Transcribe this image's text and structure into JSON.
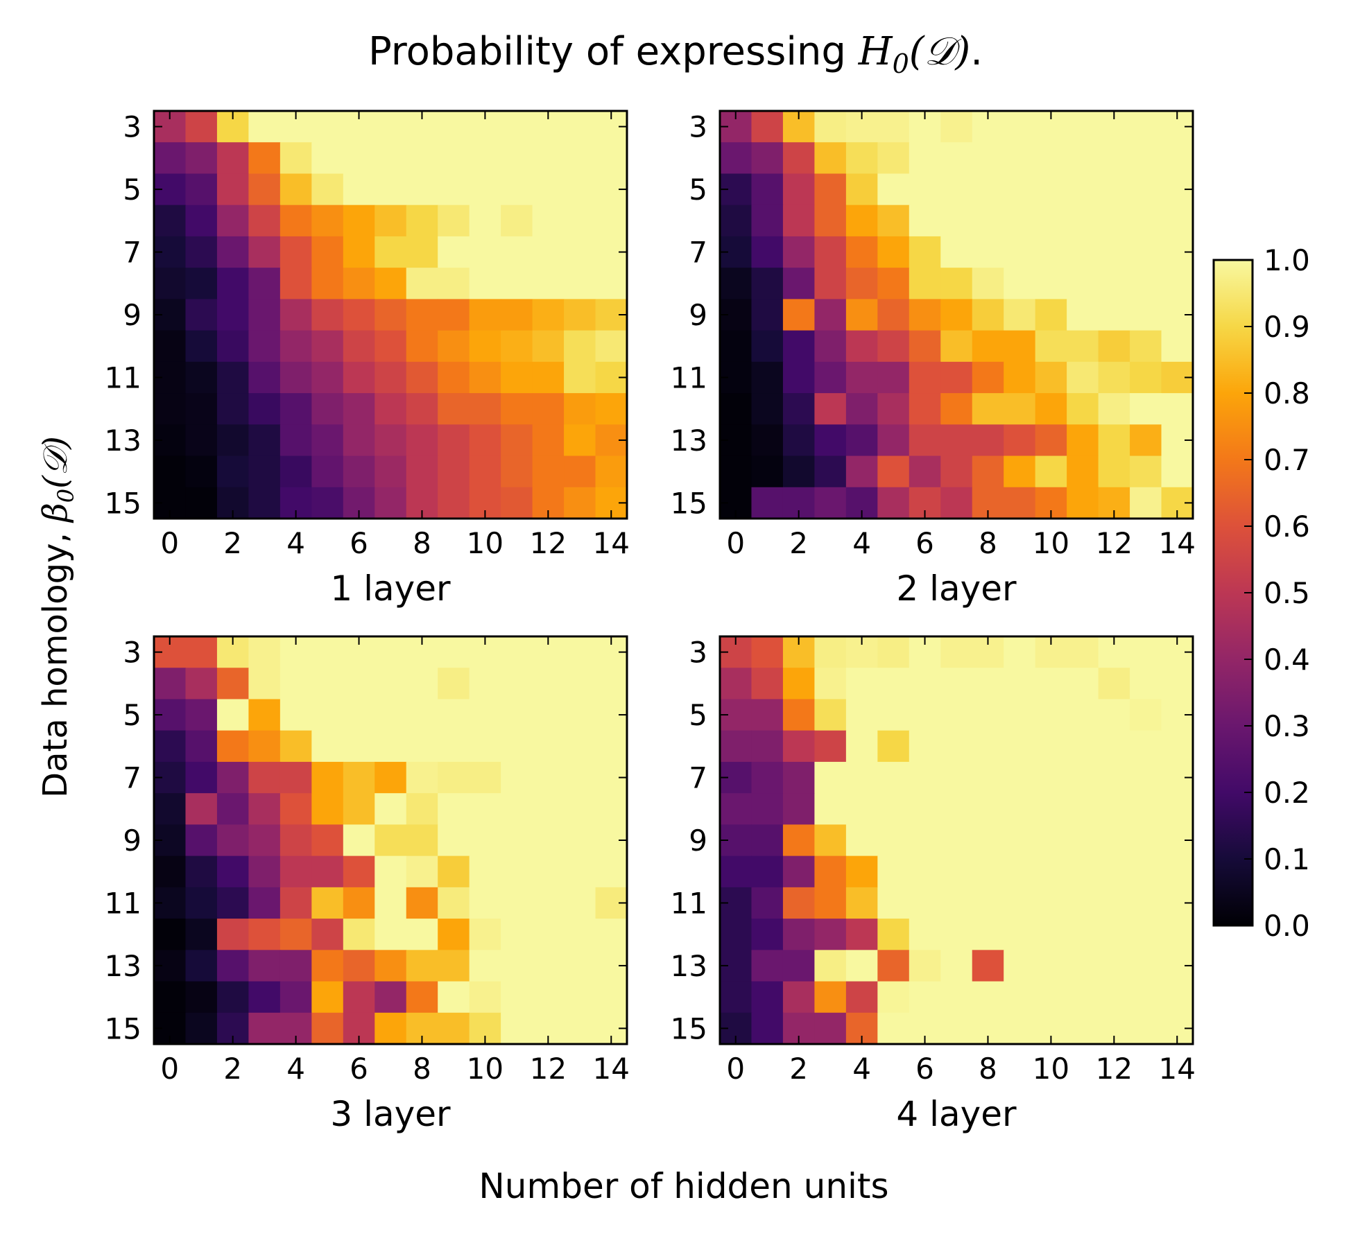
{
  "figure": {
    "title_prefix": "Probability of expressing ",
    "title_math": "H",
    "title_math_sub": "0",
    "title_math_arg": "(𝒟)",
    "title_suffix": ".",
    "xlabel": "Number of hidden units",
    "ylabel_prefix": "Data homology, ",
    "ylabel_math": "β",
    "ylabel_math_sub": "0",
    "ylabel_math_arg": "(𝒟)"
  },
  "colormap": {
    "name": "inferno",
    "stops": [
      "#000004",
      "#160b39",
      "#420a68",
      "#6a176e",
      "#932667",
      "#bc3754",
      "#dd513a",
      "#f37819",
      "#fca50a",
      "#f6d746",
      "#f8f8a0"
    ]
  },
  "colorbar": {
    "vmin": 0.0,
    "vmax": 1.0,
    "ticks": [
      0.0,
      0.1,
      0.2,
      0.3,
      0.4,
      0.5,
      0.6,
      0.7,
      0.8,
      0.9,
      1.0
    ],
    "tick_labels": [
      "0.0",
      "0.1",
      "0.2",
      "0.3",
      "0.4",
      "0.5",
      "0.6",
      "0.7",
      "0.8",
      "0.9",
      "1.0"
    ]
  },
  "chart_data": [
    {
      "type": "heatmap",
      "title": "",
      "xlabel": "1 layer",
      "x": [
        0,
        1,
        2,
        3,
        4,
        5,
        6,
        7,
        8,
        9,
        10,
        11,
        12,
        13,
        14
      ],
      "y": [
        3,
        4,
        5,
        6,
        7,
        8,
        9,
        10,
        11,
        12,
        13,
        14,
        15
      ],
      "xticks": [
        "0",
        "2",
        "4",
        "6",
        "8",
        "10",
        "12",
        "14"
      ],
      "yticks": [
        "3",
        "5",
        "7",
        "9",
        "11",
        "13",
        "15"
      ],
      "z": [
        [
          0.45,
          0.55,
          0.9,
          1.0,
          1.0,
          1.0,
          1.0,
          1.0,
          1.0,
          1.0,
          1.0,
          1.0,
          1.0,
          1.0,
          1.0
        ],
        [
          0.3,
          0.35,
          0.5,
          0.7,
          0.95,
          1.0,
          1.0,
          1.0,
          1.0,
          1.0,
          1.0,
          1.0,
          1.0,
          1.0,
          1.0
        ],
        [
          0.2,
          0.25,
          0.5,
          0.65,
          0.85,
          0.95,
          1.0,
          1.0,
          1.0,
          1.0,
          1.0,
          1.0,
          1.0,
          1.0,
          1.0
        ],
        [
          0.12,
          0.2,
          0.4,
          0.55,
          0.7,
          0.75,
          0.8,
          0.85,
          0.9,
          0.95,
          1.0,
          0.97,
          1.0,
          1.0,
          1.0
        ],
        [
          0.1,
          0.15,
          0.3,
          0.45,
          0.6,
          0.7,
          0.8,
          0.9,
          0.9,
          1.0,
          1.0,
          1.0,
          1.0,
          1.0,
          1.0
        ],
        [
          0.08,
          0.1,
          0.2,
          0.3,
          0.6,
          0.7,
          0.75,
          0.8,
          0.97,
          0.97,
          1.0,
          1.0,
          1.0,
          1.0,
          1.0
        ],
        [
          0.05,
          0.15,
          0.2,
          0.3,
          0.45,
          0.55,
          0.6,
          0.65,
          0.7,
          0.7,
          0.78,
          0.78,
          0.82,
          0.85,
          0.88
        ],
        [
          0.03,
          0.1,
          0.18,
          0.3,
          0.4,
          0.45,
          0.55,
          0.6,
          0.7,
          0.75,
          0.8,
          0.82,
          0.85,
          0.92,
          0.95
        ],
        [
          0.03,
          0.05,
          0.12,
          0.25,
          0.35,
          0.4,
          0.5,
          0.55,
          0.62,
          0.7,
          0.75,
          0.8,
          0.8,
          0.92,
          0.9
        ],
        [
          0.03,
          0.04,
          0.12,
          0.18,
          0.25,
          0.35,
          0.4,
          0.5,
          0.55,
          0.65,
          0.65,
          0.7,
          0.7,
          0.78,
          0.8
        ],
        [
          0.02,
          0.04,
          0.08,
          0.12,
          0.25,
          0.3,
          0.4,
          0.45,
          0.5,
          0.55,
          0.6,
          0.65,
          0.7,
          0.8,
          0.75
        ],
        [
          0.01,
          0.02,
          0.1,
          0.12,
          0.18,
          0.28,
          0.35,
          0.42,
          0.5,
          0.55,
          0.6,
          0.65,
          0.7,
          0.7,
          0.78
        ],
        [
          0.01,
          0.01,
          0.08,
          0.12,
          0.2,
          0.22,
          0.32,
          0.4,
          0.5,
          0.55,
          0.6,
          0.62,
          0.7,
          0.75,
          0.8
        ]
      ]
    },
    {
      "type": "heatmap",
      "title": "",
      "xlabel": "2 layer",
      "x": [
        0,
        1,
        2,
        3,
        4,
        5,
        6,
        7,
        8,
        9,
        10,
        11,
        12,
        13,
        14
      ],
      "y": [
        3,
        4,
        5,
        6,
        7,
        8,
        9,
        10,
        11,
        12,
        13,
        14,
        15
      ],
      "xticks": [
        "0",
        "2",
        "4",
        "6",
        "8",
        "10",
        "12",
        "14"
      ],
      "yticks": [
        "3",
        "5",
        "7",
        "9",
        "11",
        "13",
        "15"
      ],
      "z": [
        [
          0.4,
          0.55,
          0.85,
          0.97,
          0.98,
          0.98,
          1.0,
          0.98,
          1.0,
          1.0,
          1.0,
          1.0,
          1.0,
          1.0,
          1.0
        ],
        [
          0.3,
          0.35,
          0.55,
          0.85,
          0.92,
          0.95,
          1.0,
          1.0,
          1.0,
          1.0,
          1.0,
          1.0,
          1.0,
          1.0,
          1.0
        ],
        [
          0.15,
          0.25,
          0.5,
          0.65,
          0.88,
          1.0,
          1.0,
          1.0,
          1.0,
          1.0,
          1.0,
          1.0,
          1.0,
          1.0,
          1.0
        ],
        [
          0.12,
          0.25,
          0.5,
          0.65,
          0.8,
          0.85,
          1.0,
          1.0,
          1.0,
          1.0,
          1.0,
          1.0,
          1.0,
          1.0,
          1.0
        ],
        [
          0.1,
          0.2,
          0.4,
          0.55,
          0.7,
          0.8,
          0.9,
          1.0,
          1.0,
          1.0,
          1.0,
          1.0,
          1.0,
          1.0,
          1.0
        ],
        [
          0.05,
          0.12,
          0.3,
          0.55,
          0.65,
          0.7,
          0.9,
          0.9,
          0.97,
          1.0,
          1.0,
          1.0,
          1.0,
          1.0,
          1.0
        ],
        [
          0.03,
          0.12,
          0.7,
          0.4,
          0.75,
          0.65,
          0.75,
          0.8,
          0.88,
          0.95,
          0.9,
          1.0,
          1.0,
          1.0,
          1.0
        ],
        [
          0.02,
          0.1,
          0.2,
          0.35,
          0.5,
          0.55,
          0.65,
          0.85,
          0.8,
          0.8,
          0.92,
          0.92,
          0.88,
          0.92,
          1.0
        ],
        [
          0.02,
          0.05,
          0.2,
          0.3,
          0.4,
          0.4,
          0.6,
          0.6,
          0.7,
          0.8,
          0.85,
          0.95,
          0.92,
          0.9,
          0.88
        ],
        [
          0.01,
          0.05,
          0.15,
          0.5,
          0.35,
          0.45,
          0.6,
          0.7,
          0.85,
          0.85,
          0.8,
          0.9,
          0.97,
          1.0,
          1.0
        ],
        [
          0.01,
          0.03,
          0.12,
          0.2,
          0.25,
          0.4,
          0.55,
          0.55,
          0.55,
          0.6,
          0.65,
          0.8,
          0.9,
          0.82,
          1.0
        ],
        [
          0.01,
          0.02,
          0.08,
          0.15,
          0.4,
          0.6,
          0.45,
          0.55,
          0.65,
          0.8,
          0.9,
          0.8,
          0.9,
          0.92,
          1.0
        ],
        [
          0.01,
          0.25,
          0.25,
          0.3,
          0.25,
          0.45,
          0.55,
          0.5,
          0.65,
          0.65,
          0.7,
          0.8,
          0.82,
          0.98,
          0.9
        ]
      ]
    },
    {
      "type": "heatmap",
      "title": "",
      "xlabel": "3 layer",
      "x": [
        0,
        1,
        2,
        3,
        4,
        5,
        6,
        7,
        8,
        9,
        10,
        11,
        12,
        13,
        14
      ],
      "y": [
        3,
        4,
        5,
        6,
        7,
        8,
        9,
        10,
        11,
        12,
        13,
        14,
        15
      ],
      "xticks": [
        "0",
        "2",
        "4",
        "6",
        "8",
        "10",
        "12",
        "14"
      ],
      "yticks": [
        "3",
        "5",
        "7",
        "9",
        "11",
        "13",
        "15"
      ],
      "z": [
        [
          0.6,
          0.6,
          0.95,
          0.98,
          1.0,
          1.0,
          1.0,
          1.0,
          1.0,
          1.0,
          1.0,
          1.0,
          1.0,
          1.0,
          1.0
        ],
        [
          0.35,
          0.45,
          0.65,
          0.98,
          1.0,
          1.0,
          1.0,
          1.0,
          1.0,
          0.97,
          1.0,
          1.0,
          1.0,
          1.0,
          1.0
        ],
        [
          0.25,
          0.3,
          1.0,
          0.8,
          1.0,
          1.0,
          1.0,
          1.0,
          1.0,
          1.0,
          1.0,
          1.0,
          1.0,
          1.0,
          1.0
        ],
        [
          0.15,
          0.25,
          0.7,
          0.75,
          0.85,
          1.0,
          1.0,
          1.0,
          1.0,
          1.0,
          1.0,
          1.0,
          1.0,
          1.0,
          1.0
        ],
        [
          0.12,
          0.2,
          0.35,
          0.55,
          0.55,
          0.8,
          0.85,
          0.8,
          0.98,
          0.97,
          0.97,
          1.0,
          1.0,
          1.0,
          1.0
        ],
        [
          0.08,
          0.45,
          0.3,
          0.45,
          0.6,
          0.8,
          0.85,
          1.0,
          0.95,
          1.0,
          1.0,
          1.0,
          1.0,
          1.0,
          1.0
        ],
        [
          0.06,
          0.25,
          0.35,
          0.4,
          0.55,
          0.6,
          1.0,
          0.92,
          0.92,
          1.0,
          1.0,
          1.0,
          1.0,
          1.0,
          1.0
        ],
        [
          0.03,
          0.12,
          0.2,
          0.35,
          0.5,
          0.5,
          0.6,
          1.0,
          0.98,
          0.88,
          1.0,
          1.0,
          1.0,
          1.0,
          1.0
        ],
        [
          0.05,
          0.1,
          0.15,
          0.3,
          0.55,
          0.85,
          0.75,
          1.0,
          0.75,
          0.96,
          1.0,
          1.0,
          1.0,
          1.0,
          0.96
        ],
        [
          0.01,
          0.05,
          0.55,
          0.6,
          0.65,
          0.55,
          0.95,
          1.0,
          1.0,
          0.8,
          0.98,
          1.0,
          1.0,
          1.0,
          1.0
        ],
        [
          0.03,
          0.1,
          0.25,
          0.35,
          0.35,
          0.7,
          0.65,
          0.75,
          0.85,
          0.85,
          1.0,
          1.0,
          1.0,
          1.0,
          1.0
        ],
        [
          0.01,
          0.03,
          0.12,
          0.2,
          0.3,
          0.8,
          0.5,
          0.4,
          0.7,
          1.0,
          0.98,
          1.0,
          1.0,
          1.0,
          1.0
        ],
        [
          0.01,
          0.05,
          0.15,
          0.4,
          0.4,
          0.65,
          0.5,
          0.8,
          0.85,
          0.85,
          0.92,
          1.0,
          1.0,
          1.0,
          1.0
        ]
      ]
    },
    {
      "type": "heatmap",
      "title": "",
      "xlabel": "4 layer",
      "x": [
        0,
        1,
        2,
        3,
        4,
        5,
        6,
        7,
        8,
        9,
        10,
        11,
        12,
        13,
        14
      ],
      "y": [
        3,
        4,
        5,
        6,
        7,
        8,
        9,
        10,
        11,
        12,
        13,
        14,
        15
      ],
      "xticks": [
        "0",
        "2",
        "4",
        "6",
        "8",
        "10",
        "12",
        "14"
      ],
      "yticks": [
        "3",
        "5",
        "7",
        "9",
        "11",
        "13",
        "15"
      ],
      "z": [
        [
          0.55,
          0.6,
          0.85,
          0.97,
          0.98,
          0.97,
          1.0,
          0.98,
          0.98,
          1.0,
          0.98,
          0.98,
          1.0,
          1.0,
          1.0
        ],
        [
          0.45,
          0.55,
          0.8,
          0.98,
          1.0,
          1.0,
          1.0,
          1.0,
          1.0,
          1.0,
          1.0,
          1.0,
          0.97,
          1.0,
          1.0
        ],
        [
          0.4,
          0.4,
          0.7,
          0.92,
          1.0,
          1.0,
          1.0,
          1.0,
          1.0,
          1.0,
          1.0,
          1.0,
          1.0,
          0.99,
          1.0
        ],
        [
          0.35,
          0.35,
          0.5,
          0.55,
          1.0,
          0.9,
          1.0,
          1.0,
          1.0,
          1.0,
          1.0,
          1.0,
          1.0,
          1.0,
          1.0
        ],
        [
          0.25,
          0.3,
          0.35,
          1.0,
          1.0,
          1.0,
          1.0,
          1.0,
          1.0,
          1.0,
          1.0,
          1.0,
          1.0,
          1.0,
          1.0
        ],
        [
          0.3,
          0.3,
          0.35,
          1.0,
          1.0,
          1.0,
          1.0,
          1.0,
          1.0,
          1.0,
          1.0,
          1.0,
          1.0,
          1.0,
          1.0
        ],
        [
          0.25,
          0.25,
          0.7,
          0.85,
          1.0,
          1.0,
          1.0,
          1.0,
          1.0,
          1.0,
          1.0,
          1.0,
          1.0,
          1.0,
          1.0
        ],
        [
          0.2,
          0.2,
          0.35,
          0.7,
          0.8,
          1.0,
          1.0,
          1.0,
          1.0,
          1.0,
          1.0,
          1.0,
          1.0,
          1.0,
          1.0
        ],
        [
          0.15,
          0.25,
          0.65,
          0.7,
          0.85,
          1.0,
          1.0,
          1.0,
          1.0,
          1.0,
          1.0,
          1.0,
          1.0,
          1.0,
          1.0
        ],
        [
          0.15,
          0.2,
          0.35,
          0.4,
          0.5,
          0.9,
          1.0,
          1.0,
          1.0,
          1.0,
          1.0,
          1.0,
          1.0,
          1.0,
          1.0
        ],
        [
          0.15,
          0.3,
          0.3,
          0.97,
          1.0,
          0.65,
          0.98,
          1.0,
          0.6,
          1.0,
          1.0,
          1.0,
          1.0,
          1.0,
          1.0
        ],
        [
          0.15,
          0.2,
          0.45,
          0.75,
          0.55,
          0.99,
          1.0,
          1.0,
          1.0,
          1.0,
          1.0,
          1.0,
          1.0,
          1.0,
          1.0
        ],
        [
          0.12,
          0.2,
          0.4,
          0.4,
          0.65,
          1.0,
          1.0,
          1.0,
          1.0,
          1.0,
          1.0,
          1.0,
          1.0,
          1.0,
          1.0
        ]
      ]
    }
  ]
}
